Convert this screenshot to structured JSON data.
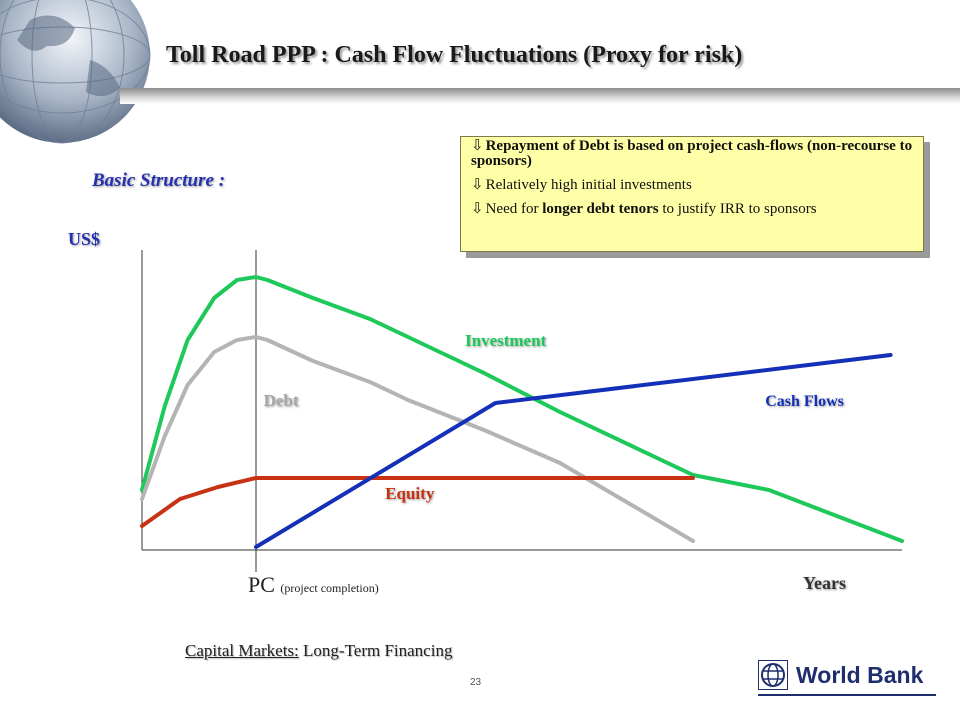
{
  "slide": {
    "title": "Toll Road PPP : Cash Flow Fluctuations (Proxy for risk)",
    "subtitle": "Basic Structure :",
    "callout": [
      {
        "mark": "⇩",
        "bold": "Repayment of Debt is based on project cash-flows (non-recourse to sponsors)",
        "pre": "",
        "post": ""
      },
      {
        "mark": "⇩",
        "bold": "",
        "pre": "Relatively high initial investments",
        "post": ""
      },
      {
        "mark": "⇩",
        "bold": "longer debt tenors",
        "pre": "Need for ",
        "post": " to justify IRR to sponsors"
      }
    ],
    "footer_underlined": "Capital Markets:",
    "footer_rest": " Long-Term Financing",
    "page_number": "23",
    "logo_text": "World Bank"
  },
  "chart_data": {
    "type": "line",
    "ylabel": "US$",
    "xlabel": "Years",
    "x_marker_label": "PC",
    "x_marker_sublabel": "(project completion)",
    "x_marker_value": 3,
    "xlim": [
      0,
      20
    ],
    "ylim": [
      0,
      100
    ],
    "series": [
      {
        "name": "Investment",
        "color": "#1ec85a",
        "x": [
          0,
          0.6,
          1.2,
          1.9,
          2.5,
          3.0,
          3.3,
          4.5,
          6,
          7,
          9,
          11,
          14.5,
          16.5,
          20
        ],
        "y": [
          20,
          48,
          70,
          84,
          90,
          91,
          90,
          84,
          77,
          71,
          59,
          46,
          25,
          20,
          3
        ]
      },
      {
        "name": "Debt",
        "color": "#b4b4b4",
        "x": [
          0,
          0.6,
          1.2,
          1.9,
          2.5,
          3.0,
          3.3,
          4.5,
          6,
          7,
          9,
          11,
          14.5
        ],
        "y": [
          17,
          38,
          55,
          66,
          70,
          71,
          70,
          63,
          56,
          50,
          40,
          29,
          3
        ]
      },
      {
        "name": "Equity",
        "color": "#c83214",
        "x": [
          0,
          1,
          2,
          3,
          14.5
        ],
        "y": [
          8,
          17,
          21,
          24,
          24
        ]
      },
      {
        "name": "Cash Flows",
        "color": "#1530b8",
        "x": [
          3,
          9.3,
          19.7
        ],
        "y": [
          1,
          49,
          65
        ]
      }
    ]
  }
}
